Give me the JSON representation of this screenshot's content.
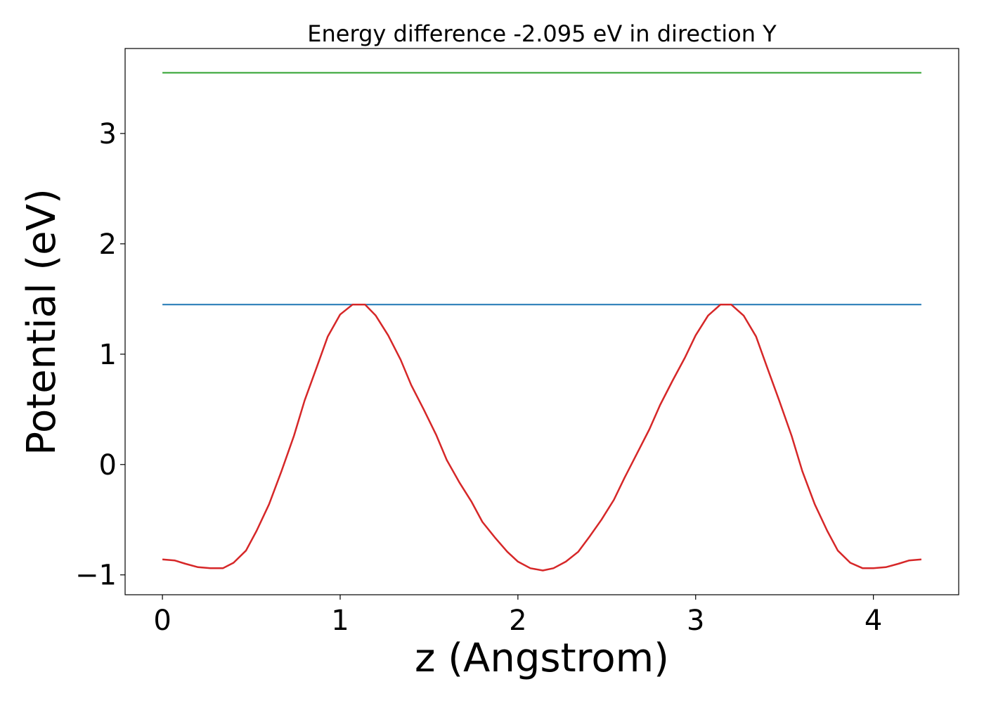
{
  "chart_data": {
    "type": "line",
    "title": "Energy difference -2.095 eV in direction Y",
    "xlabel": "z (Angstrom)",
    "ylabel": "Potential (eV)",
    "xlim": [
      -0.21,
      4.48
    ],
    "ylim": [
      -1.18,
      3.77
    ],
    "xticks": [
      0,
      1,
      2,
      3,
      4
    ],
    "yticks": [
      -1,
      0,
      1,
      2,
      3
    ],
    "xtick_labels": [
      "0",
      "1",
      "2",
      "3",
      "4"
    ],
    "ytick_labels": [
      "−1",
      "0",
      "1",
      "2",
      "3"
    ],
    "grid": false,
    "series": [
      {
        "color": "#2ca02c",
        "x": [
          0,
          4.27
        ],
        "y": [
          3.55,
          3.55
        ]
      },
      {
        "color": "#1f77b4",
        "x": [
          0,
          4.27
        ],
        "y": [
          1.45,
          1.45
        ]
      },
      {
        "color": "#d62728",
        "x": [
          0,
          0.07,
          0.13,
          0.2,
          0.27,
          0.34,
          0.4,
          0.47,
          0.53,
          0.6,
          0.67,
          0.74,
          0.8,
          0.87,
          0.93,
          1.0,
          1.07,
          1.14,
          1.2,
          1.27,
          1.34,
          1.4,
          1.47,
          1.54,
          1.6,
          1.67,
          1.74,
          1.8,
          1.87,
          1.94,
          2.0,
          2.07,
          2.14,
          2.2,
          2.27,
          2.34,
          2.4,
          2.47,
          2.54,
          2.6,
          2.67,
          2.74,
          2.8,
          2.87,
          2.94,
          3.0,
          3.07,
          3.14,
          3.2,
          3.27,
          3.34,
          3.4,
          3.47,
          3.54,
          3.6,
          3.67,
          3.74,
          3.8,
          3.87,
          3.94,
          4.0,
          4.07,
          4.14,
          4.2,
          4.27
        ],
        "y": [
          -0.86,
          -0.87,
          -0.9,
          -0.93,
          -0.94,
          -0.94,
          -0.89,
          -0.78,
          -0.6,
          -0.36,
          -0.06,
          0.26,
          0.58,
          0.89,
          1.16,
          1.36,
          1.45,
          1.45,
          1.35,
          1.17,
          0.95,
          0.72,
          0.5,
          0.27,
          0.04,
          -0.16,
          -0.34,
          -0.52,
          -0.66,
          -0.79,
          -0.88,
          -0.94,
          -0.96,
          -0.94,
          -0.88,
          -0.79,
          -0.66,
          -0.5,
          -0.32,
          -0.12,
          0.1,
          0.32,
          0.54,
          0.76,
          0.97,
          1.17,
          1.35,
          1.45,
          1.45,
          1.35,
          1.16,
          0.89,
          0.58,
          0.26,
          -0.06,
          -0.36,
          -0.6,
          -0.78,
          -0.89,
          -0.94,
          -0.94,
          -0.93,
          -0.9,
          -0.87,
          -0.86
        ]
      }
    ]
  }
}
